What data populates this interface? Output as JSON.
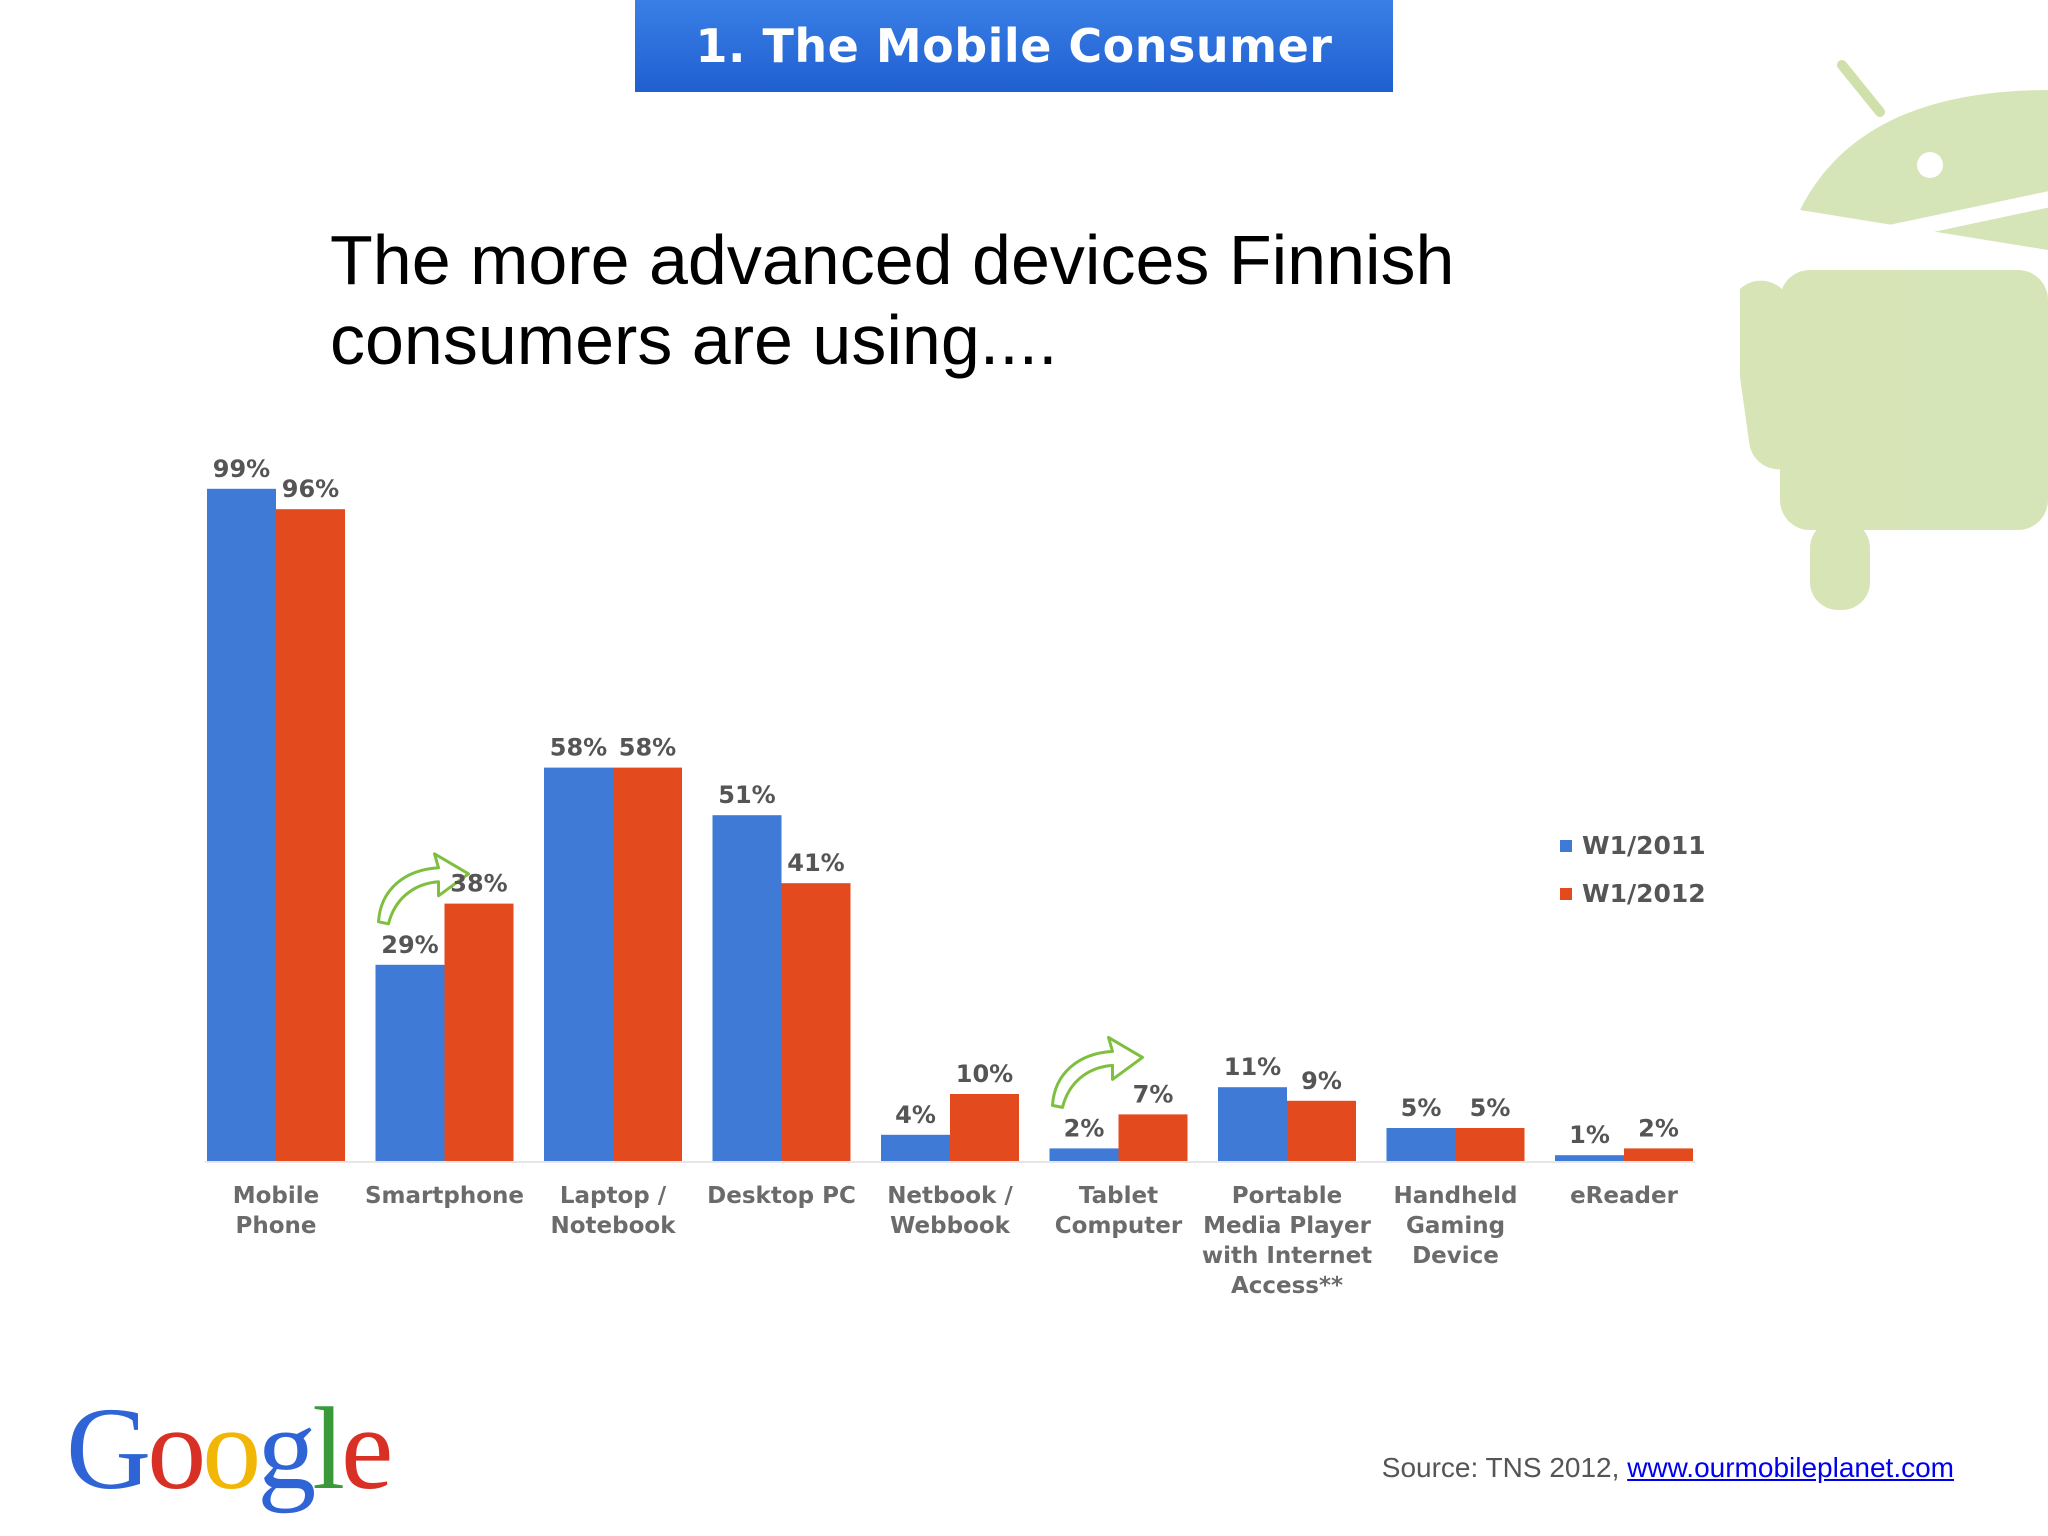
{
  "slide": {
    "header": "1. The Mobile Consumer",
    "headline_line1": "The more advanced devices Finnish",
    "headline_line2": "consumers are using....",
    "source_prefix": "Source: TNS 2012, ",
    "source_link": "www.ourmobileplanet.com",
    "logo": "Google"
  },
  "colors": {
    "w2011": "#3f7bd6",
    "w2012": "#e34a1e",
    "header": "#2a6ee0",
    "arrow": "#7fbf3f",
    "android": "#c8dca0"
  },
  "chart_data": {
    "type": "bar",
    "ylim": [
      0,
      100
    ],
    "grid": false,
    "legend_position": "right",
    "categories": [
      [
        "Mobile",
        "Phone"
      ],
      [
        "Smartphone"
      ],
      [
        "Laptop /",
        "Notebook"
      ],
      [
        "Desktop PC"
      ],
      [
        "Netbook /",
        "Webbook"
      ],
      [
        "Tablet",
        "Computer"
      ],
      [
        "Portable",
        "Media Player",
        "with Internet",
        "Access**"
      ],
      [
        "Handheld",
        "Gaming",
        "Device"
      ],
      [
        "eReader"
      ]
    ],
    "series": [
      {
        "name": "W1/2011",
        "values": [
          99,
          29,
          58,
          51,
          4,
          2,
          11,
          5,
          1
        ]
      },
      {
        "name": "W1/2012",
        "values": [
          96,
          38,
          58,
          41,
          10,
          7,
          9,
          5,
          2
        ]
      }
    ],
    "value_suffix": "%",
    "highlight_arrows": [
      "Smartphone",
      "Tablet Computer"
    ]
  }
}
